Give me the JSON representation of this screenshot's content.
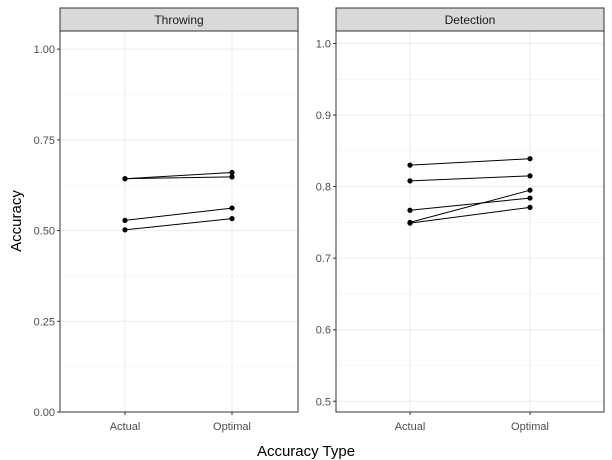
{
  "chart_data": {
    "type": "line",
    "xlabel": "Accuracy Type",
    "ylabel": "Accuracy",
    "categories": [
      "Actual",
      "Optimal"
    ],
    "grid": true,
    "panels": [
      {
        "title": "Throwing",
        "ylim": [
          0,
          1.05
        ],
        "yticks": [
          0.0,
          0.25,
          0.5,
          0.75,
          1.0
        ],
        "ytick_labels": [
          "0.00",
          "0.25",
          "0.50",
          "0.75",
          "1.00"
        ],
        "series": [
          {
            "values": [
              0.643,
              0.66
            ]
          },
          {
            "values": [
              0.643,
              0.648
            ]
          },
          {
            "values": [
              0.528,
              0.562
            ]
          },
          {
            "values": [
              0.502,
              0.533
            ]
          }
        ]
      },
      {
        "title": "Detection",
        "ylim": [
          0.485,
          1.0175
        ],
        "yticks": [
          0.5,
          0.6,
          0.7,
          0.8,
          0.9,
          1.0
        ],
        "ytick_labels": [
          "0.5",
          "0.6",
          "0.7",
          "0.8",
          "0.9",
          "1.0"
        ],
        "series": [
          {
            "values": [
              0.83,
              0.839
            ]
          },
          {
            "values": [
              0.808,
              0.815
            ]
          },
          {
            "values": [
              0.767,
              0.784
            ]
          },
          {
            "values": [
              0.75,
              0.795
            ]
          },
          {
            "values": [
              0.749,
              0.771
            ]
          }
        ]
      }
    ]
  }
}
